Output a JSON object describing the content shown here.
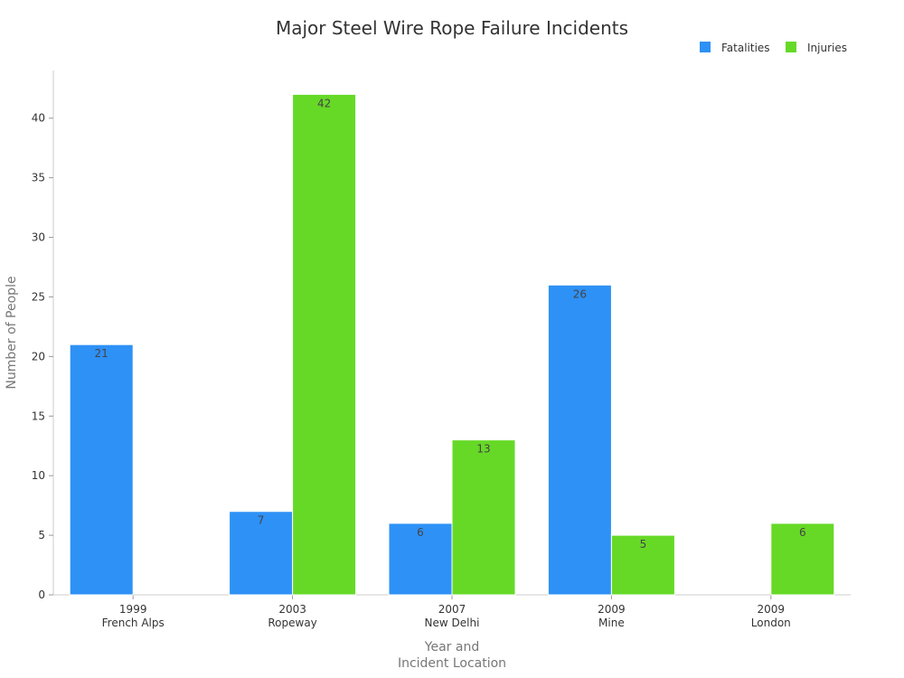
{
  "chart_data": {
    "type": "bar",
    "title": "Major Steel Wire Rope Failure Incidents",
    "xlabel": [
      "Year and",
      "Incident Location"
    ],
    "ylabel": "Number of People",
    "categories": [
      [
        "1999",
        "French Alps"
      ],
      [
        "2003",
        "Ropeway"
      ],
      [
        "2007",
        "New Delhi"
      ],
      [
        "2009",
        "Mine"
      ],
      [
        "2009",
        "London"
      ]
    ],
    "series": [
      {
        "name": "Fatalities",
        "color": "#2e91f6",
        "values": [
          21,
          7,
          6,
          26,
          0
        ]
      },
      {
        "name": "Injuries",
        "color": "#66d927",
        "values": [
          0,
          42,
          13,
          5,
          6
        ]
      }
    ],
    "ylim": [
      0,
      44
    ],
    "yticks": [
      0,
      5,
      10,
      15,
      20,
      25,
      30,
      35,
      40
    ],
    "legend": "top-right",
    "grid": false
  }
}
